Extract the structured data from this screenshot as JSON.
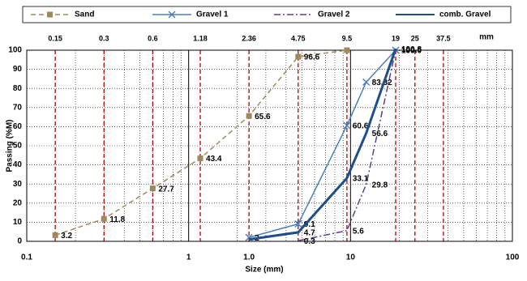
{
  "chart_data": {
    "type": "line",
    "xlabel": "Size (mm)",
    "ylabel": "Passing (%M)",
    "xscale": "log",
    "xlim": [
      0.1,
      100
    ],
    "xticks": [
      {
        "value": 0.1,
        "label": "0.1"
      },
      1,
      10,
      100
    ],
    "ylim": [
      0,
      100
    ],
    "yticks": [
      0,
      10,
      20,
      30,
      40,
      50,
      60,
      70,
      80,
      90,
      100
    ],
    "grid": true,
    "sieves": [
      0.15,
      0.3,
      0.6,
      1.18,
      2.36,
      4.75,
      9.5,
      19,
      25,
      37.5
    ],
    "sieve_color": "#c00000",
    "sieve_unit": "mm",
    "annotations": [
      "1.0"
    ],
    "legend": "top",
    "series": [
      {
        "name": "Sand",
        "color": "#9c8a5e",
        "line_style": "dashed",
        "marker": "square",
        "width": 1.5,
        "x": [
          0.15,
          0.3,
          0.6,
          1.18,
          2.36,
          4.75,
          9.5
        ],
        "values": [
          3.2,
          11.8,
          27.7,
          43.4,
          65.6,
          96.6,
          100
        ],
        "value_labels": [
          "3.2",
          "11.8",
          "27.7",
          "43.4",
          "65.6",
          "96.6",
          null
        ]
      },
      {
        "name": "Gravel 1",
        "color": "#4a7ebb",
        "line_style": "solid",
        "marker": "x",
        "width": 1.5,
        "x": [
          2.36,
          4.75,
          9.5,
          12.5,
          19
        ],
        "values": [
          2,
          9.1,
          60.6,
          83.32,
          100
        ],
        "value_labels": [
          "2",
          "9.1",
          "60.6",
          "83.32",
          "100"
        ]
      },
      {
        "name": "Gravel 2",
        "color": "#5b3f8c",
        "line_style": "dashdot",
        "marker": "none",
        "width": 1.5,
        "x": [
          4.75,
          9.5,
          12.5,
          19
        ],
        "values": [
          0.3,
          5.6,
          29.8,
          100
        ],
        "value_labels": [
          "0.3",
          "5.6",
          "29.8",
          "100.0"
        ]
      },
      {
        "name": "comb. Gravel",
        "color": "#1f4e8c",
        "line_style": "solid",
        "marker": "none",
        "width": 3,
        "x": [
          2.36,
          4.75,
          9.5,
          12.5,
          19
        ],
        "values": [
          1,
          4.7,
          33.1,
          56.6,
          100.8
        ],
        "value_labels": [
          null,
          "4.7",
          "33.1",
          "56.6",
          "100.8"
        ]
      }
    ]
  }
}
